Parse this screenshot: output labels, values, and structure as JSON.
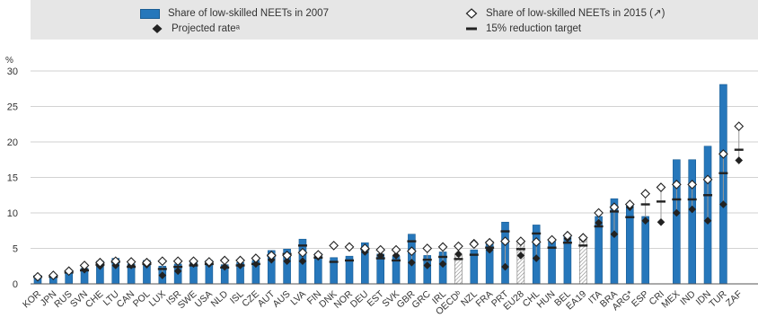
{
  "colors": {
    "bar": "#2677bb",
    "bar_edge": "#1a5d94",
    "hatch": "#888888",
    "marker": "#222222",
    "grid": "#d2d2d2",
    "legend_bg": "#e6e6e6"
  },
  "legend": {
    "items": [
      {
        "key": "bar",
        "label": "Share of low-skilled NEETs in 2007"
      },
      {
        "key": "open-diamond",
        "label": "Share of low-skilled NEETs in 2015 (↗)"
      },
      {
        "key": "filled-diamond",
        "label": "Projected rateᵃ"
      },
      {
        "key": "dash",
        "label": "15% reduction target"
      }
    ]
  },
  "chart_data": {
    "type": "bar",
    "ylabel": "%",
    "ylim": [
      0,
      30
    ],
    "yticks": [
      0,
      5,
      10,
      15,
      20,
      25,
      30
    ],
    "grid": true,
    "legend_position": "top",
    "categories": [
      "KOR",
      "JPN",
      "RUS",
      "SVN",
      "CHE",
      "LTU",
      "CAN",
      "POL",
      "LUX",
      "ISR",
      "SWE",
      "USA",
      "NLD",
      "ISL",
      "CZE",
      "AUT",
      "AUS",
      "LVA",
      "FIN",
      "DNK",
      "NOR",
      "DEU",
      "EST",
      "SVK",
      "GBR",
      "GRC",
      "IRL",
      "OECDᵇ",
      "NZL",
      "FRA",
      "PRT",
      "EU28",
      "CHL",
      "HUN",
      "BEL",
      "EA19",
      "ITA",
      "BRA",
      "ARG*",
      "ESP",
      "CRI",
      "MEX",
      "IND",
      "IDN",
      "TUR",
      "ZAF"
    ],
    "hatched_categories": [
      "OECDᵇ",
      "EU28",
      "EA19"
    ],
    "series": [
      {
        "name": "Share of low-skilled NEETs in 2007",
        "values": [
          1.2,
          1.2,
          1.9,
          2.2,
          3.2,
          3.6,
          2.8,
          3.3,
          2.5,
          2.8,
          3.0,
          3.3,
          2.7,
          3.0,
          3.3,
          4.7,
          4.9,
          6.3,
          4.3,
          3.7,
          3.9,
          5.8,
          4.2,
          3.9,
          7.0,
          4.0,
          4.5,
          4.1,
          4.8,
          6.0,
          8.7,
          5.8,
          8.3,
          6.0,
          6.8,
          6.3,
          9.5,
          12.0,
          11.0,
          9.5,
          null,
          17.5,
          17.5,
          19.4,
          28.1,
          null
        ]
      },
      {
        "name": "Share of low-skilled NEETs in 2015 (↗)",
        "values": [
          1.0,
          1.2,
          1.8,
          2.6,
          3.0,
          3.2,
          3.1,
          3.0,
          3.2,
          3.2,
          3.2,
          3.1,
          3.3,
          3.3,
          3.6,
          4.0,
          4.0,
          4.4,
          4.1,
          5.4,
          5.2,
          5.0,
          4.8,
          4.8,
          4.6,
          5.0,
          5.2,
          5.3,
          5.6,
          5.8,
          6.0,
          6.0,
          5.9,
          6.2,
          6.8,
          6.5,
          10.0,
          10.8,
          11.2,
          12.7,
          13.6,
          14.0,
          14.0,
          14.7,
          18.3,
          22.2
        ]
      },
      {
        "name": "Projected rateᵃ",
        "values": [
          1.0,
          1.2,
          1.8,
          2.0,
          2.5,
          2.6,
          2.6,
          2.7,
          1.2,
          1.8,
          2.8,
          2.8,
          2.4,
          2.6,
          2.8,
          3.4,
          3.2,
          3.2,
          3.8,
          5.4,
          5.2,
          4.5,
          4.0,
          4.0,
          3.0,
          2.6,
          2.8,
          4.2,
          5.8,
          4.8,
          2.4,
          4.0,
          3.6,
          6.2,
          6.4,
          6.3,
          8.6,
          7.0,
          10.8,
          8.9,
          8.7,
          10.0,
          10.5,
          8.9,
          11.2,
          17.4
        ]
      },
      {
        "name": "15% reduction target",
        "values": [
          1.0,
          1.0,
          1.6,
          1.9,
          2.7,
          3.1,
          2.4,
          2.8,
          2.1,
          2.4,
          2.6,
          2.8,
          2.3,
          2.6,
          2.8,
          4.0,
          4.2,
          5.4,
          3.7,
          3.1,
          3.3,
          4.9,
          3.6,
          3.3,
          6.0,
          3.4,
          3.8,
          3.5,
          4.1,
          5.1,
          7.4,
          4.9,
          7.1,
          5.1,
          5.8,
          5.4,
          8.1,
          10.2,
          9.4,
          11.2,
          11.6,
          11.9,
          11.9,
          12.5,
          15.6,
          18.9
        ]
      }
    ]
  }
}
